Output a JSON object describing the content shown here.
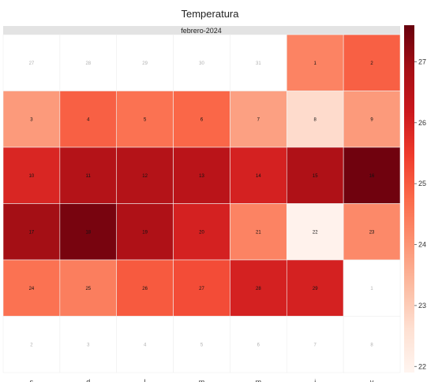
{
  "chart_data": {
    "type": "heatmap",
    "title": "Temperatura",
    "strip_label": "febrero-2024",
    "weekdays": [
      "s",
      "d",
      "l",
      "m",
      "m",
      "j",
      "v"
    ],
    "colorbar": {
      "ticks": [
        22,
        23,
        24,
        25,
        26,
        27
      ],
      "range": [
        21.9,
        27.6
      ],
      "colors": [
        "#fff5f0",
        "#fee0d2",
        "#fcbba1",
        "#fc9272",
        "#fb6a4a",
        "#ef3b2c",
        "#cb181d",
        "#a50f15",
        "#67000d"
      ]
    },
    "cells": [
      {
        "day": "27",
        "value": null,
        "in_month": false
      },
      {
        "day": "28",
        "value": null,
        "in_month": false
      },
      {
        "day": "29",
        "value": null,
        "in_month": false
      },
      {
        "day": "30",
        "value": null,
        "in_month": false
      },
      {
        "day": "31",
        "value": null,
        "in_month": false
      },
      {
        "day": "1",
        "value": 24.3,
        "in_month": true
      },
      {
        "day": "2",
        "value": 24.9,
        "in_month": true
      },
      {
        "day": "3",
        "value": 23.9,
        "in_month": true
      },
      {
        "day": "4",
        "value": 24.9,
        "in_month": true
      },
      {
        "day": "5",
        "value": 24.6,
        "in_month": true
      },
      {
        "day": "6",
        "value": 24.8,
        "in_month": true
      },
      {
        "day": "7",
        "value": 23.8,
        "in_month": true
      },
      {
        "day": "8",
        "value": 22.7,
        "in_month": true
      },
      {
        "day": "9",
        "value": 23.9,
        "in_month": true
      },
      {
        "day": "10",
        "value": 25.9,
        "in_month": true
      },
      {
        "day": "11",
        "value": 26.6,
        "in_month": true
      },
      {
        "day": "12",
        "value": 26.6,
        "in_month": true
      },
      {
        "day": "13",
        "value": 26.5,
        "in_month": true
      },
      {
        "day": "14",
        "value": 26.0,
        "in_month": true
      },
      {
        "day": "15",
        "value": 26.7,
        "in_month": true
      },
      {
        "day": "16",
        "value": 27.5,
        "in_month": true
      },
      {
        "day": "17",
        "value": 26.9,
        "in_month": true
      },
      {
        "day": "18",
        "value": 27.4,
        "in_month": true
      },
      {
        "day": "19",
        "value": 26.7,
        "in_month": true
      },
      {
        "day": "20",
        "value": 26.0,
        "in_month": true
      },
      {
        "day": "21",
        "value": 24.3,
        "in_month": true
      },
      {
        "day": "22",
        "value": 22.0,
        "in_month": true
      },
      {
        "day": "23",
        "value": 24.2,
        "in_month": true
      },
      {
        "day": "24",
        "value": 24.6,
        "in_month": true
      },
      {
        "day": "25",
        "value": 24.4,
        "in_month": true
      },
      {
        "day": "26",
        "value": 25.0,
        "in_month": true
      },
      {
        "day": "27",
        "value": 25.2,
        "in_month": true
      },
      {
        "day": "28",
        "value": 26.0,
        "in_month": true
      },
      {
        "day": "29",
        "value": 26.0,
        "in_month": true
      },
      {
        "day": "1",
        "value": null,
        "in_month": false
      },
      {
        "day": "2",
        "value": null,
        "in_month": false
      },
      {
        "day": "3",
        "value": null,
        "in_month": false
      },
      {
        "day": "4",
        "value": null,
        "in_month": false
      },
      {
        "day": "5",
        "value": null,
        "in_month": false
      },
      {
        "day": "6",
        "value": null,
        "in_month": false
      },
      {
        "day": "7",
        "value": null,
        "in_month": false
      },
      {
        "day": "8",
        "value": null,
        "in_month": false
      }
    ]
  }
}
